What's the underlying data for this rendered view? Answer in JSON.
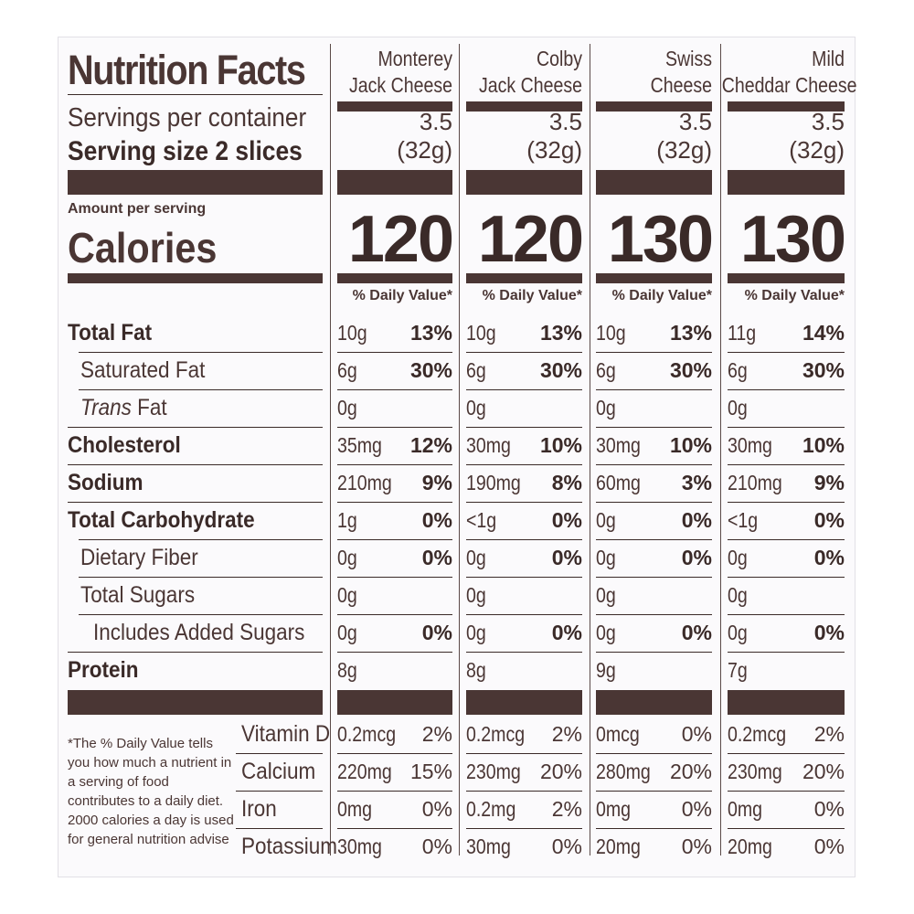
{
  "label": {
    "title": "Nutrition Facts",
    "servings_label": "Servings per container",
    "serving_size_label": "Serving size 2 slices",
    "amount_per_serving": "Amount per serving",
    "calories_label": "Calories",
    "dv_header": "% Daily Value*"
  },
  "products": [
    {
      "name_line1": "Monterey",
      "name_line2": "Jack Cheese",
      "servings": "3.5",
      "serving_weight": "(32g)",
      "calories": "120"
    },
    {
      "name_line1": "Colby",
      "name_line2": "Jack Cheese",
      "servings": "3.5",
      "serving_weight": "(32g)",
      "calories": "120"
    },
    {
      "name_line1": "Swiss",
      "name_line2": "Cheese",
      "servings": "3.5",
      "serving_weight": "(32g)",
      "calories": "130"
    },
    {
      "name_line1": "Mild",
      "name_line2": "Cheddar Cheese",
      "servings": "3.5",
      "serving_weight": "(32g)",
      "calories": "130"
    }
  ],
  "nutrients": [
    {
      "label": "Total Fat",
      "bold": true,
      "indent": 0,
      "values": [
        [
          "10g",
          "13%"
        ],
        [
          "10g",
          "13%"
        ],
        [
          "10g",
          "13%"
        ],
        [
          "11g",
          "14%"
        ]
      ]
    },
    {
      "label": "Saturated Fat",
      "bold": false,
      "indent": 1,
      "values": [
        [
          "6g",
          "30%"
        ],
        [
          "6g",
          "30%"
        ],
        [
          "6g",
          "30%"
        ],
        [
          "6g",
          "30%"
        ]
      ]
    },
    {
      "label": "Trans Fat",
      "bold": false,
      "indent": 1,
      "italic_prefix": "Trans",
      "values": [
        [
          "0g",
          ""
        ],
        [
          "0g",
          ""
        ],
        [
          "0g",
          ""
        ],
        [
          "0g",
          ""
        ]
      ]
    },
    {
      "label": "Cholesterol",
      "bold": true,
      "indent": 0,
      "values": [
        [
          "35mg",
          "12%"
        ],
        [
          "30mg",
          "10%"
        ],
        [
          "30mg",
          "10%"
        ],
        [
          "30mg",
          "10%"
        ]
      ]
    },
    {
      "label": "Sodium",
      "bold": true,
      "indent": 0,
      "values": [
        [
          "210mg",
          "9%"
        ],
        [
          "190mg",
          "8%"
        ],
        [
          "60mg",
          "3%"
        ],
        [
          "210mg",
          "9%"
        ]
      ]
    },
    {
      "label": "Total Carbohydrate",
      "bold": true,
      "indent": 0,
      "values": [
        [
          "1g",
          "0%"
        ],
        [
          "<1g",
          "0%"
        ],
        [
          "0g",
          "0%"
        ],
        [
          "<1g",
          "0%"
        ]
      ]
    },
    {
      "label": "Dietary Fiber",
      "bold": false,
      "indent": 1,
      "values": [
        [
          "0g",
          "0%"
        ],
        [
          "0g",
          "0%"
        ],
        [
          "0g",
          "0%"
        ],
        [
          "0g",
          "0%"
        ]
      ]
    },
    {
      "label": "Total Sugars",
      "bold": false,
      "indent": 1,
      "values": [
        [
          "0g",
          ""
        ],
        [
          "0g",
          ""
        ],
        [
          "0g",
          ""
        ],
        [
          "0g",
          ""
        ]
      ]
    },
    {
      "label": "Includes Added Sugars",
      "bold": false,
      "indent": 2,
      "values": [
        [
          "0g",
          "0%"
        ],
        [
          "0g",
          "0%"
        ],
        [
          "0g",
          "0%"
        ],
        [
          "0g",
          "0%"
        ]
      ]
    },
    {
      "label": "Protein",
      "bold": true,
      "indent": 0,
      "values": [
        [
          "8g",
          ""
        ],
        [
          "8g",
          ""
        ],
        [
          "9g",
          ""
        ],
        [
          "7g",
          ""
        ]
      ]
    }
  ],
  "vitamins": [
    {
      "label": "Vitamin D",
      "values": [
        [
          "0.2mcg",
          "2%"
        ],
        [
          "0.2mcg",
          "2%"
        ],
        [
          "0mcg",
          "0%"
        ],
        [
          "0.2mcg",
          "2%"
        ]
      ]
    },
    {
      "label": "Calcium",
      "values": [
        [
          "220mg",
          "15%"
        ],
        [
          "230mg",
          "20%"
        ],
        [
          "280mg",
          "20%"
        ],
        [
          "230mg",
          "20%"
        ]
      ]
    },
    {
      "label": "Iron",
      "values": [
        [
          "0mg",
          "0%"
        ],
        [
          "0.2mg",
          "2%"
        ],
        [
          "0mg",
          "0%"
        ],
        [
          "0mg",
          "0%"
        ]
      ]
    },
    {
      "label": "Potassium",
      "values": [
        [
          "30mg",
          "0%"
        ],
        [
          "30mg",
          "0%"
        ],
        [
          "20mg",
          "0%"
        ],
        [
          "20mg",
          "0%"
        ]
      ]
    }
  ],
  "footnote": "*The % Daily Value tells you how much a nutrient in a serving of food contributes to a daily diet. 2000 calories a day is used for general nutrition advise"
}
